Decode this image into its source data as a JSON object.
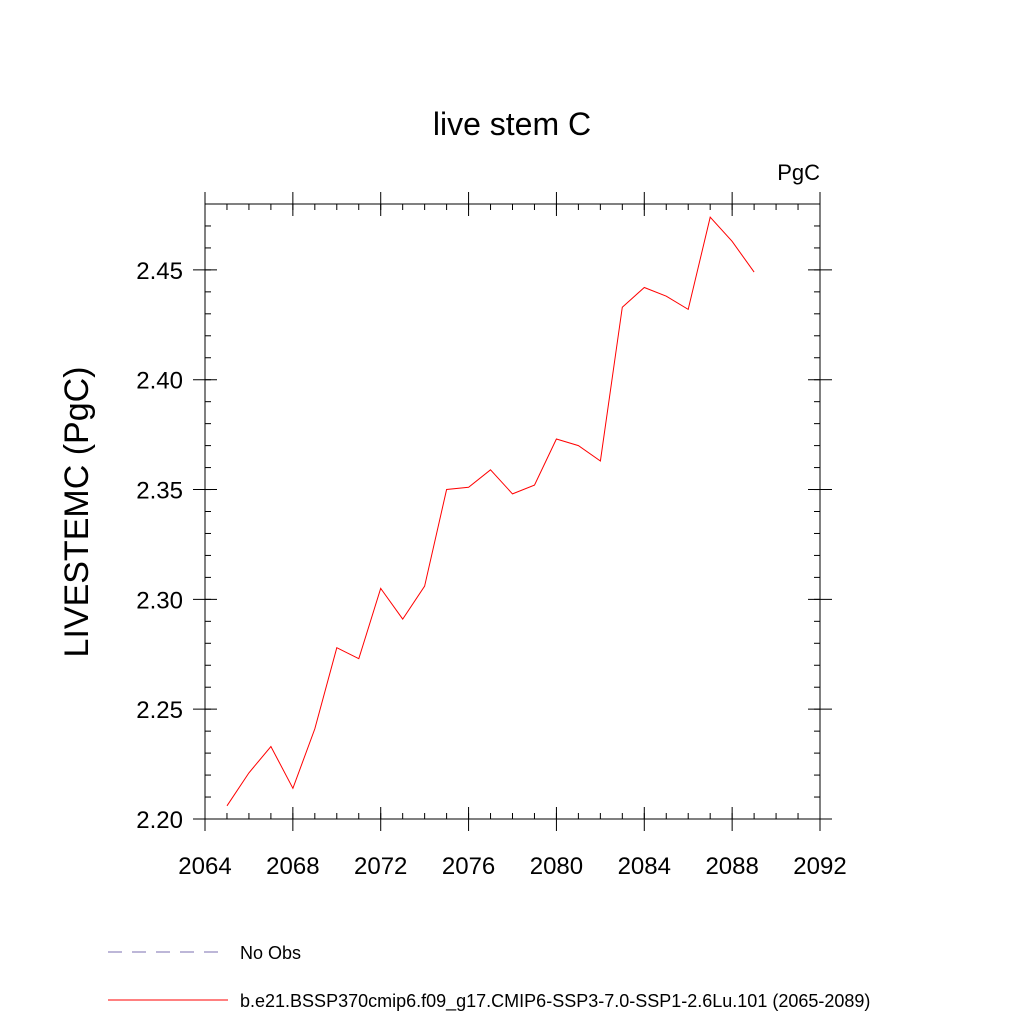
{
  "chart_data": {
    "type": "line",
    "title": "live stem C",
    "units_label": "PgC",
    "ylabel": "LIVESTEMC  (PgC)",
    "xlabel": "",
    "xlim": [
      2064,
      2092
    ],
    "ylim": [
      2.2,
      2.48
    ],
    "x_ticks": [
      2064,
      2068,
      2072,
      2076,
      2080,
      2084,
      2088,
      2092
    ],
    "x_tick_labels": [
      "2064",
      "2068",
      "2072",
      "2076",
      "2080",
      "2084",
      "2088",
      "2092"
    ],
    "y_ticks": [
      2.2,
      2.25,
      2.3,
      2.35,
      2.4,
      2.45
    ],
    "y_tick_labels": [
      "2.20",
      "2.25",
      "2.30",
      "2.35",
      "2.40",
      "2.45"
    ],
    "y_minor_step": 0.01,
    "x_minor_step": 1,
    "grid": false,
    "legend_position": "bottom",
    "series": [
      {
        "name": "No Obs",
        "color": "#7b6fb0",
        "dash": "dashed",
        "x": [],
        "values": []
      },
      {
        "name": "b.e21.BSSP370cmip6.f09_g17.CMIP6-SSP3-7.0-SSP1-2.6Lu.101 (2065-2089)",
        "color": "#ff0000",
        "dash": "solid",
        "x": [
          2065,
          2066,
          2067,
          2068,
          2069,
          2070,
          2071,
          2072,
          2073,
          2074,
          2075,
          2076,
          2077,
          2078,
          2079,
          2080,
          2081,
          2082,
          2083,
          2084,
          2085,
          2086,
          2087,
          2088,
          2089
        ],
        "values": [
          2.206,
          2.221,
          2.233,
          2.214,
          2.241,
          2.278,
          2.273,
          2.305,
          2.291,
          2.306,
          2.35,
          2.351,
          2.359,
          2.348,
          2.352,
          2.373,
          2.37,
          2.363,
          2.433,
          2.442,
          2.438,
          2.432,
          2.474,
          2.463,
          2.449
        ]
      }
    ]
  }
}
